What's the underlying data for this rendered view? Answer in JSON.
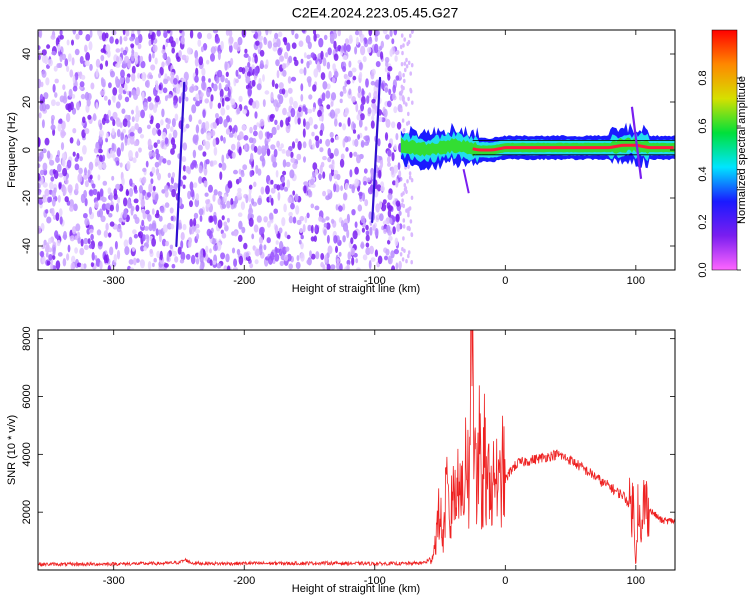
{
  "title": "C2E4.2024.223.05.45.G27",
  "colors": {
    "snr_line": "#ee2222",
    "cluster_blue": "#1a1aff",
    "cluster_cyan": "#22ddee",
    "cluster_green": "#33dd33",
    "cluster_red": "#ff1a3a",
    "noise_purple": "#7a1ef0",
    "noise_light": "#d9b8ff"
  },
  "chart_data": [
    {
      "type": "heatmap",
      "title": "C2E4.2024.223.05.45.G27",
      "xlabel": "Height of straight line (km)",
      "ylabel": "Frequency (Hz)",
      "xlim": [
        -358,
        130
      ],
      "ylim": [
        -50,
        50
      ],
      "x_ticks": [
        -300,
        -200,
        -100,
        0,
        100
      ],
      "y_ticks": [
        -40,
        -20,
        0,
        20,
        40
      ],
      "noise_region_x": [
        -358,
        -80
      ],
      "signal_track_frequency_hz": [
        [
          -80,
          2
        ],
        [
          -70,
          1
        ],
        [
          -60,
          0
        ],
        [
          -50,
          1
        ],
        [
          -40,
          2
        ],
        [
          -30,
          1
        ],
        [
          -20,
          0
        ],
        [
          -10,
          0
        ],
        [
          0,
          1
        ],
        [
          20,
          1
        ],
        [
          40,
          1
        ],
        [
          60,
          1
        ],
        [
          80,
          1
        ],
        [
          90,
          2
        ],
        [
          100,
          2
        ],
        [
          110,
          1
        ],
        [
          130,
          1
        ]
      ],
      "colorbar": {
        "label": "Normalized spectral amplitude",
        "range": [
          0.0,
          1.0
        ],
        "ticks": [
          "0.0",
          "0.2",
          "0.4",
          "0.6",
          "0.8"
        ],
        "stops": [
          "#ff66ff",
          "#7a1ef0",
          "#1a1aff",
          "#00e5ff",
          "#00e03a",
          "#d6e000",
          "#ff8800",
          "#ff0000"
        ]
      },
      "grid": false
    },
    {
      "type": "line",
      "xlabel": "Height of straight line (km)",
      "ylabel": "SNR (10 * v/v)",
      "xlim": [
        -358,
        130
      ],
      "ylim": [
        0,
        8300
      ],
      "x_ticks": [
        -300,
        -200,
        -100,
        0,
        100
      ],
      "y_ticks": [
        2000,
        4000,
        6000,
        8000
      ],
      "series": [
        {
          "x": [
            -358,
            -340,
            -320,
            -300,
            -280,
            -260,
            -250,
            -245,
            -240,
            -220,
            -200,
            -180,
            -160,
            -140,
            -120,
            -100,
            -80,
            -65,
            -58,
            -55,
            -52,
            -50,
            -48,
            -45,
            -42,
            -40,
            -38,
            -35,
            -32,
            -30,
            -28,
            -26,
            -25,
            -24,
            -23,
            -22,
            -20,
            -18,
            -16,
            -14,
            -12,
            -10,
            -8,
            -5,
            -2,
            0,
            5,
            10,
            20,
            30,
            40,
            50,
            60,
            70,
            75,
            80,
            85,
            90,
            95,
            98,
            100,
            102,
            104,
            106,
            110,
            115,
            120,
            125,
            130
          ],
          "values": [
            200,
            200,
            200,
            210,
            220,
            230,
            260,
            350,
            240,
            220,
            230,
            230,
            230,
            240,
            230,
            220,
            220,
            240,
            300,
            600,
            1500,
            2200,
            900,
            2800,
            1400,
            3400,
            2100,
            4100,
            1800,
            5100,
            2600,
            7400,
            8300,
            4500,
            6800,
            2400,
            4600,
            1900,
            4100,
            2300,
            3900,
            2200,
            3700,
            2600,
            3500,
            3100,
            3500,
            3700,
            3800,
            3900,
            4000,
            3800,
            3500,
            3200,
            3000,
            2900,
            2700,
            2600,
            2300,
            2200,
            200,
            2800,
            700,
            2400,
            2100,
            1900,
            1700,
            1700,
            1700
          ]
        }
      ],
      "grid": false
    }
  ]
}
